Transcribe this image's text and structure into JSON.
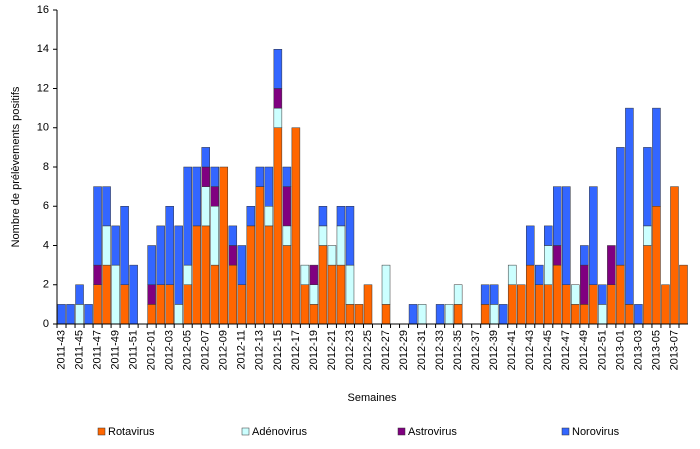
{
  "chart_data": {
    "type": "bar",
    "stacked": true,
    "x_label": "Semaines",
    "y_label": "Nombre de prélèvements positifs",
    "categories": [
      "2011-43",
      null,
      "2011-45",
      null,
      "2011-47",
      null,
      "2011-49",
      null,
      "2011-51",
      null,
      "2012-01",
      null,
      "2012-03",
      null,
      "2012-05",
      null,
      "2012-07",
      null,
      "2012-09",
      null,
      "2012-11",
      null,
      "2012-13",
      null,
      "2012-15",
      null,
      "2012-17",
      null,
      "2012-19",
      null,
      "2012-21",
      null,
      "2012-23",
      null,
      "2012-25",
      null,
      "2012-27",
      null,
      "2012-29",
      null,
      "2012-31",
      null,
      "2012-33",
      null,
      "2012-35",
      null,
      "2012-37",
      null,
      "2012-39",
      null,
      "2012-41",
      null,
      "2012-43",
      null,
      "2012-45",
      null,
      "2012-47",
      null,
      "2012-49",
      null,
      "2012-51",
      null,
      "2013-01",
      null,
      "2013-03",
      null,
      "2013-05",
      null,
      "2013-07",
      null
    ],
    "series": [
      {
        "name": "Rotavirus",
        "color": "#ff6600",
        "values": [
          0,
          0,
          0,
          0,
          2,
          3,
          0,
          2,
          0,
          0,
          1,
          2,
          2,
          0,
          2,
          5,
          5,
          3,
          8,
          3,
          2,
          5,
          7,
          5,
          10,
          4,
          10,
          2,
          1,
          4,
          3,
          3,
          1,
          1,
          2,
          0,
          1,
          0,
          0,
          0,
          0,
          0,
          0,
          0,
          1,
          0,
          0,
          1,
          0,
          0,
          2,
          2,
          3,
          2,
          2,
          3,
          2,
          1,
          1,
          2,
          0,
          2,
          3,
          1,
          0,
          4,
          6,
          2,
          7,
          3
        ]
      },
      {
        "name": "Adénovirus",
        "color": "#ccffff",
        "values": [
          0,
          0,
          1,
          0,
          0,
          2,
          3,
          0,
          0,
          0,
          0,
          0,
          0,
          1,
          1,
          0,
          2,
          3,
          0,
          0,
          0,
          0,
          0,
          1,
          1,
          1,
          0,
          1,
          1,
          1,
          1,
          2,
          2,
          0,
          0,
          0,
          2,
          0,
          0,
          0,
          1,
          0,
          0,
          1,
          1,
          0,
          0,
          0,
          1,
          0,
          1,
          0,
          0,
          0,
          2,
          0,
          0,
          1,
          0,
          0,
          1,
          0,
          0,
          0,
          0,
          1,
          0,
          0,
          0,
          0
        ]
      },
      {
        "name": "Astrovirus",
        "color": "#800080",
        "values": [
          0,
          0,
          0,
          0,
          1,
          0,
          0,
          0,
          0,
          0,
          1,
          0,
          0,
          0,
          0,
          0,
          1,
          1,
          0,
          1,
          0,
          0,
          0,
          0,
          1,
          2,
          0,
          0,
          1,
          0,
          0,
          0,
          0,
          0,
          0,
          0,
          0,
          0,
          0,
          0,
          0,
          0,
          0,
          0,
          0,
          0,
          0,
          0,
          0,
          0,
          0,
          0,
          0,
          0,
          0,
          1,
          0,
          0,
          2,
          0,
          0,
          2,
          0,
          0,
          0,
          0,
          0,
          0,
          0,
          0
        ]
      },
      {
        "name": "Norovirus",
        "color": "#3366ff",
        "values": [
          1,
          1,
          1,
          1,
          4,
          2,
          2,
          4,
          3,
          0,
          2,
          3,
          4,
          4,
          5,
          3,
          1,
          1,
          0,
          1,
          2,
          1,
          1,
          2,
          2,
          1,
          0,
          0,
          0,
          1,
          0,
          1,
          3,
          0,
          0,
          0,
          0,
          0,
          0,
          1,
          0,
          0,
          1,
          0,
          0,
          0,
          0,
          1,
          1,
          1,
          0,
          0,
          2,
          1,
          1,
          3,
          5,
          0,
          1,
          5,
          1,
          0,
          6,
          10,
          1,
          4,
          5,
          0,
          0,
          0
        ]
      }
    ],
    "ylim": [
      0,
      16
    ],
    "yticks": [
      0,
      2,
      4,
      6,
      8,
      10,
      12,
      14,
      16
    ],
    "legend": "bottom"
  }
}
